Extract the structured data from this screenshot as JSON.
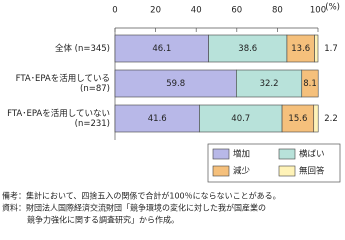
{
  "chart_data": {
    "type": "stacked-bar-horizontal",
    "unit_label": "(%)",
    "categories": [
      [
        "全体",
        "(n=345)"
      ],
      [
        "FTA･EPAを活用している",
        "(n=87)"
      ],
      [
        "FTA･EPAを活用していない",
        "(n=231)"
      ]
    ],
    "series": [
      {
        "name": "増加",
        "color": "#b8b8e8",
        "values": [
          46.1,
          59.8,
          41.6
        ]
      },
      {
        "name": "横ばい",
        "color": "#b8e2da",
        "values": [
          38.6,
          32.2,
          40.7
        ]
      },
      {
        "name": "減少",
        "color": "#f5c07c",
        "values": [
          13.6,
          8.1,
          15.6
        ]
      },
      {
        "name": "無回答",
        "color": "#fff3b8",
        "values": [
          1.7,
          null,
          2.2
        ]
      }
    ],
    "xlim": [
      0,
      100
    ],
    "xticks": [
      0,
      20,
      40,
      60,
      80,
      100
    ],
    "notes": [
      "備考：集計において、四捨五入の関係で合計が100％にならないことがある。",
      "資料：財団法人国際経済交流財団「競争環境の変化に対した我が国産業の",
      "競争力強化に関する調査研究」から作成。"
    ]
  }
}
